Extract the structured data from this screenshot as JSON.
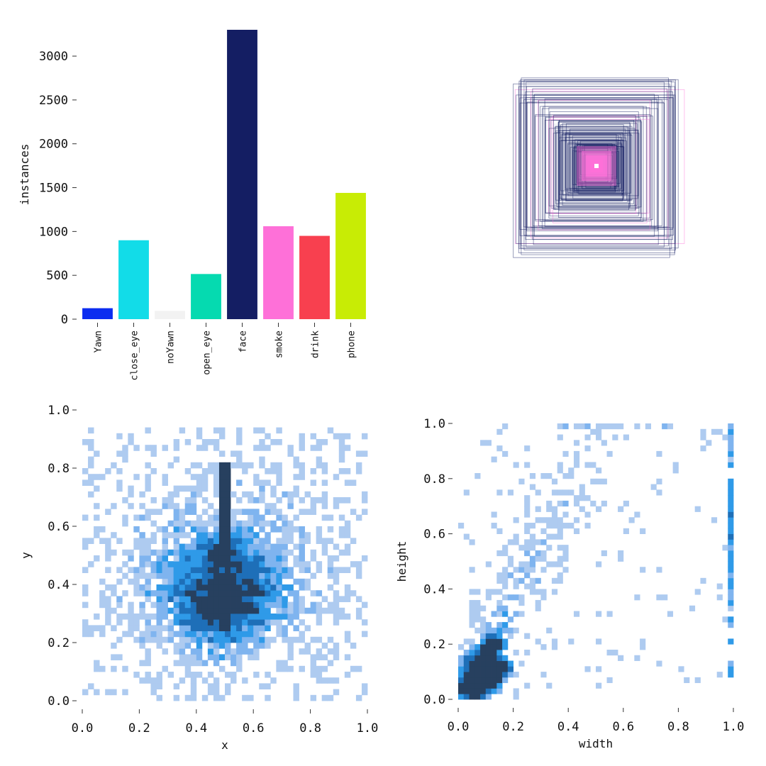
{
  "chart_data": [
    {
      "type": "bar",
      "ylabel": "instances",
      "categories": [
        "Yawn",
        "close_eye",
        "noYawn",
        "open_eye",
        "face",
        "smoke",
        "drink",
        "phone"
      ],
      "values": [
        125,
        900,
        95,
        515,
        3300,
        1060,
        950,
        1440
      ],
      "colors": [
        "#0b2cf0",
        "#12dce8",
        "#f2f2f2",
        "#05dab0",
        "#141e63",
        "#fe70d8",
        "#f8404f",
        "#c8ec05"
      ],
      "ylim": [
        0,
        3300
      ],
      "yticks": [
        0,
        500,
        1000,
        1500,
        2000,
        2500,
        3000
      ],
      "ytick_labels": [
        "0",
        "500",
        "1000",
        "1500",
        "2000",
        "2500",
        "3000"
      ]
    },
    {
      "type": "other",
      "description_kind": "overlaid-bounding-boxes",
      "box_color": "#141e63",
      "highlight_color": "#fe70d8"
    },
    {
      "type": "heatmap",
      "xlabel": "x",
      "ylabel": "y",
      "xlim": [
        0,
        1
      ],
      "ylim": [
        0,
        1
      ],
      "xticks": [
        0.0,
        0.2,
        0.4,
        0.6,
        0.8,
        1.0
      ],
      "xtick_labels": [
        "0.0",
        "0.2",
        "0.4",
        "0.6",
        "0.8",
        "1.0"
      ],
      "yticks": [
        0.0,
        0.2,
        0.4,
        0.6,
        0.8,
        1.0
      ],
      "ytick_labels": [
        "0.0",
        "0.2",
        "0.4",
        "0.6",
        "0.8",
        "1.0"
      ],
      "colors": [
        "#aecbf0",
        "#7fb4ef",
        "#2f9ae8",
        "#1e6fb8",
        "#27405f"
      ]
    },
    {
      "type": "heatmap",
      "xlabel": "width",
      "ylabel": "height",
      "xlim": [
        0,
        1
      ],
      "ylim": [
        0,
        1
      ],
      "xticks": [
        0.0,
        0.2,
        0.4,
        0.6,
        0.8,
        1.0
      ],
      "xtick_labels": [
        "0.0",
        "0.2",
        "0.4",
        "0.6",
        "0.8",
        "1.0"
      ],
      "yticks": [
        0.0,
        0.2,
        0.4,
        0.6,
        0.8,
        1.0
      ],
      "ytick_labels": [
        "0.0",
        "0.2",
        "0.4",
        "0.6",
        "0.8",
        "1.0"
      ],
      "colors": [
        "#aecbf0",
        "#7fb4ef",
        "#2f9ae8",
        "#1e6fb8",
        "#27405f"
      ]
    }
  ]
}
